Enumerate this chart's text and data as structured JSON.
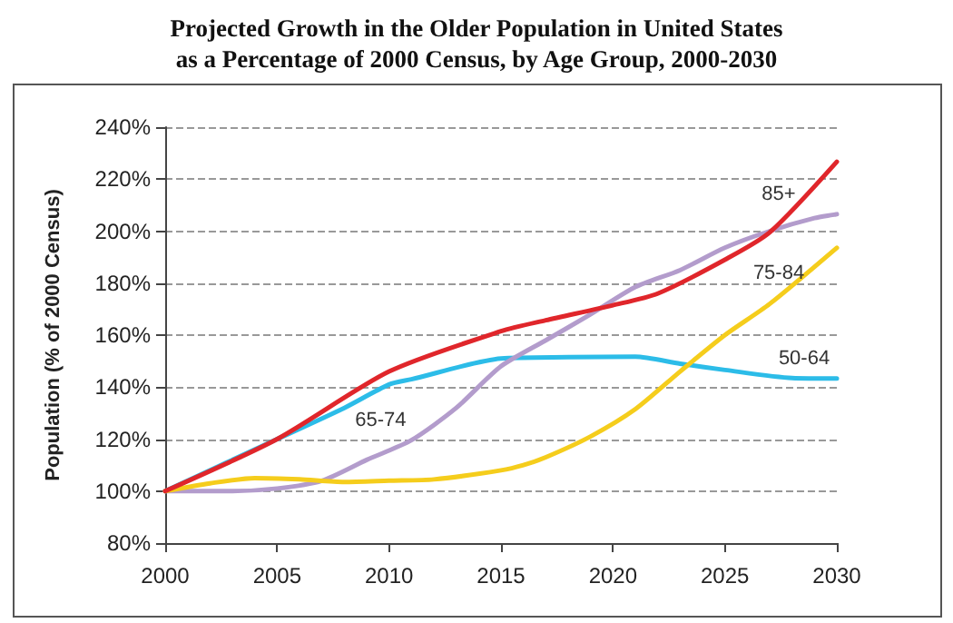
{
  "chart_data": {
    "type": "line",
    "title": "Projected Growth in the Older Population in United States\nas a Percentage of 2000 Census, by Age Group, 2000-2030",
    "ylabel": "Population (% of 2000 Census)",
    "xlim": [
      2000,
      2030
    ],
    "xticks": [
      2000,
      2005,
      2010,
      2015,
      2020,
      2025,
      2030
    ],
    "ylim": [
      80,
      240
    ],
    "yticks": [
      {
        "value": 80,
        "label": "80%"
      },
      {
        "value": 100,
        "label": "100%"
      },
      {
        "value": 120,
        "label": "120%"
      },
      {
        "value": 140,
        "label": "140%"
      },
      {
        "value": 160,
        "label": "160%"
      },
      {
        "value": 180,
        "label": "180%"
      },
      {
        "value": 200,
        "label": "200%"
      },
      {
        "value": 220,
        "label": "220%"
      },
      {
        "value": 240,
        "label": "240%"
      }
    ],
    "grid": "y",
    "marker": "none",
    "line_style": "solid",
    "series": [
      {
        "name": "50-64",
        "color": "#2cbce8",
        "x": [
          2000,
          2005,
          2008,
          2010,
          2011,
          2015,
          2018,
          2021,
          2023,
          2025,
          2028,
          2030
        ],
        "values": [
          100,
          120,
          132,
          141,
          143,
          151,
          151.5,
          151.7,
          149,
          146.6,
          143.5,
          143.3
        ]
      },
      {
        "name": "65-74",
        "color": "#b39ccc",
        "x": [
          2000,
          2003,
          2005,
          2007,
          2009,
          2011,
          2013,
          2015,
          2017,
          2019,
          2021,
          2023,
          2025,
          2027,
          2029,
          2030
        ],
        "values": [
          100,
          100,
          101,
          104,
          112,
          119.6,
          132,
          148,
          158,
          168,
          178.5,
          185,
          193.6,
          200,
          205,
          206.5
        ]
      },
      {
        "name": "75-84",
        "color": "#f5cd1c",
        "x": [
          2000,
          2002,
          2004,
          2006,
          2008,
          2010,
          2012,
          2015,
          2016,
          2017,
          2019,
          2021,
          2023,
          2025,
          2027,
          2030
        ],
        "values": [
          100,
          103,
          105,
          104.5,
          103.5,
          104,
          104.5,
          108,
          110,
          113,
          121,
          131.5,
          146,
          160,
          172,
          193.6
        ]
      },
      {
        "name": "85+",
        "color": "#e0262b",
        "x": [
          2000,
          2005,
          2010,
          2015,
          2017,
          2020,
          2022,
          2025,
          2027,
          2030
        ],
        "values": [
          100,
          120,
          146,
          161.5,
          165.7,
          171.5,
          176,
          189,
          199.5,
          226.7
        ]
      }
    ]
  }
}
